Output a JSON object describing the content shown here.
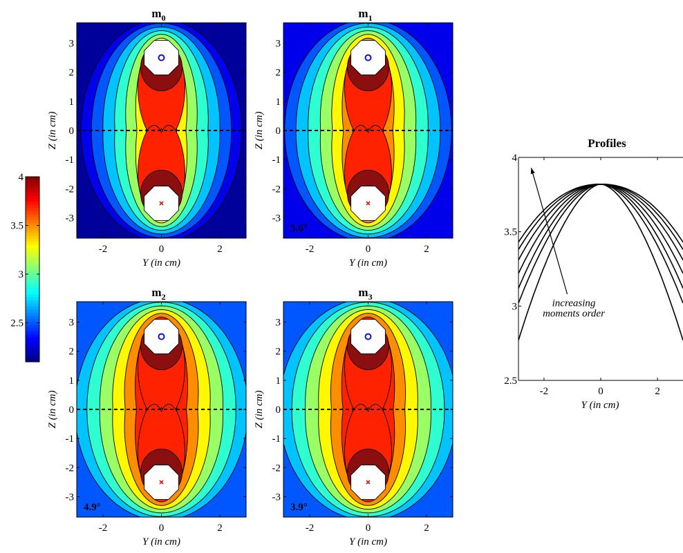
{
  "chart_data": [
    {
      "type": "heatmap",
      "title": "m",
      "title_sub": "0",
      "xlabel": "Y (in cm)",
      "ylabel": "Z (in cm)",
      "xlim": [
        -2.9,
        2.9
      ],
      "ylim": [
        -3.7,
        3.7
      ],
      "xticks": [
        -2,
        0,
        2
      ],
      "yticks": [
        -3,
        -2,
        -1,
        0,
        1,
        2,
        3
      ],
      "anisotropy": 0,
      "angle_label": "",
      "electrodes": [
        {
          "y": 0,
          "z": 2.5,
          "marker": "circle",
          "color": "#1010dd"
        },
        {
          "y": 0,
          "z": -2.5,
          "marker": "cross",
          "color": "#dd1010"
        }
      ],
      "profile_line_z": 0
    },
    {
      "type": "heatmap",
      "title": "m",
      "title_sub": "1",
      "xlabel": "Y (in cm)",
      "ylabel": "Z (in cm)",
      "xlim": [
        -2.9,
        2.9
      ],
      "ylim": [
        -3.7,
        3.7
      ],
      "xticks": [
        -2,
        0,
        2
      ],
      "yticks": [
        -3,
        -2,
        -1,
        0,
        1,
        2,
        3
      ],
      "anisotropy": 0.15,
      "angle_label": "5.6°",
      "electrodes": [
        {
          "y": 0,
          "z": 2.5,
          "marker": "circle",
          "color": "#1010dd"
        },
        {
          "y": 0,
          "z": -2.5,
          "marker": "cross",
          "color": "#dd1010"
        }
      ],
      "profile_line_z": 0
    },
    {
      "type": "heatmap",
      "title": "m",
      "title_sub": "2",
      "xlabel": "Y (in cm)",
      "ylabel": "Z (in cm)",
      "xlim": [
        -2.9,
        2.9
      ],
      "ylim": [
        -3.7,
        3.7
      ],
      "xticks": [
        -2,
        0,
        2
      ],
      "yticks": [
        -3,
        -2,
        -1,
        0,
        1,
        2,
        3
      ],
      "anisotropy": 0.3,
      "angle_label": "4.9°",
      "electrodes": [
        {
          "y": 0,
          "z": 2.5,
          "marker": "circle",
          "color": "#1010dd"
        },
        {
          "y": 0,
          "z": -2.5,
          "marker": "cross",
          "color": "#dd1010"
        }
      ],
      "profile_line_z": 0
    },
    {
      "type": "heatmap",
      "title": "m",
      "title_sub": "3",
      "xlabel": "Y (in cm)",
      "ylabel": "Z (in cm)",
      "xlim": [
        -2.9,
        2.9
      ],
      "ylim": [
        -3.7,
        3.7
      ],
      "xticks": [
        -2,
        0,
        2
      ],
      "yticks": [
        -3,
        -2,
        -1,
        0,
        1,
        2,
        3
      ],
      "anisotropy": 0.42,
      "angle_label": "3.9°",
      "electrodes": [
        {
          "y": 0,
          "z": 2.5,
          "marker": "circle",
          "color": "#1010dd"
        },
        {
          "y": 0,
          "z": -2.5,
          "marker": "cross",
          "color": "#dd1010"
        }
      ],
      "profile_line_z": 0
    },
    {
      "type": "line",
      "title": "Profiles",
      "xlabel": "Y (in cm)",
      "ylabel": "",
      "xlim": [
        -2.9,
        2.9
      ],
      "ylim": [
        2.5,
        4.0
      ],
      "xticks": [
        -2,
        0,
        2
      ],
      "yticks": [
        2.5,
        3,
        3.5,
        4
      ],
      "peak": {
        "x": 0,
        "y": 3.82
      },
      "series": [
        {
          "x": [
            -2.9,
            0,
            2.9
          ],
          "y": [
            2.77,
            3.82,
            2.77
          ]
        },
        {
          "x": [
            -2.9,
            0,
            2.9
          ],
          "y": [
            3.02,
            3.82,
            3.02
          ]
        },
        {
          "x": [
            -2.9,
            0,
            2.9
          ],
          "y": [
            3.12,
            3.82,
            3.12
          ]
        },
        {
          "x": [
            -2.9,
            0,
            2.9
          ],
          "y": [
            3.22,
            3.82,
            3.22
          ]
        },
        {
          "x": [
            -2.9,
            0,
            2.9
          ],
          "y": [
            3.31,
            3.82,
            3.31
          ]
        },
        {
          "x": [
            -2.9,
            0,
            2.9
          ],
          "y": [
            3.38,
            3.82,
            3.38
          ]
        },
        {
          "x": [
            -2.9,
            0,
            2.9
          ],
          "y": [
            3.43,
            3.82,
            3.43
          ]
        }
      ],
      "annotation": {
        "lines": [
          "increasing",
          "moments order"
        ]
      }
    }
  ],
  "colorbar": {
    "range": [
      2.1,
      4.0
    ],
    "ticks": [
      2.5,
      3,
      3.5,
      4
    ],
    "colormap": "jet"
  },
  "contour_levels": [
    2.2,
    2.4,
    2.6,
    2.8,
    3.0,
    3.2,
    3.4,
    3.6,
    3.8
  ]
}
